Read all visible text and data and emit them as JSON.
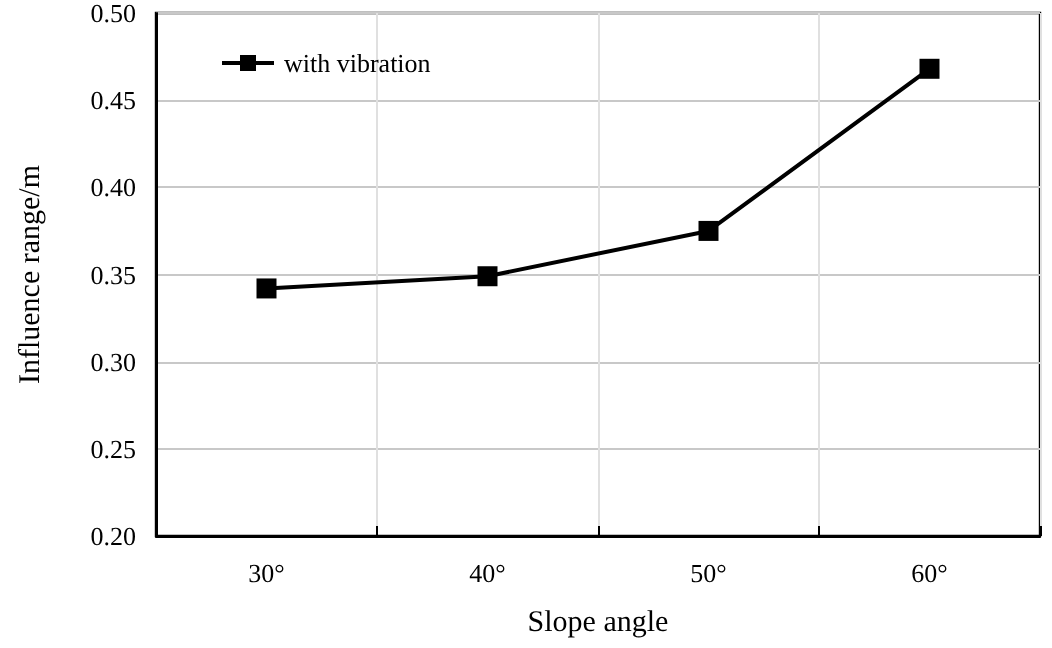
{
  "chart_data": {
    "type": "line",
    "xlabel": "Slope angle",
    "ylabel": "Influence range/m",
    "categories": [
      "30°",
      "40°",
      "50°",
      "60°"
    ],
    "series": [
      {
        "name": "with vibration",
        "color": "#000000",
        "values": [
          0.342,
          0.349,
          0.375,
          0.468
        ]
      }
    ],
    "ylim": [
      0.2,
      0.5
    ],
    "yticks": [
      {
        "value": 0.2,
        "label": "0.20"
      },
      {
        "value": 0.25,
        "label": "0.25"
      },
      {
        "value": 0.3,
        "label": "0.30"
      },
      {
        "value": 0.35,
        "label": "0.35"
      },
      {
        "value": 0.4,
        "label": "0.40"
      },
      {
        "value": 0.45,
        "label": "0.45"
      },
      {
        "value": 0.5,
        "label": "0.50"
      }
    ],
    "grid": true,
    "legend": "top left",
    "marker": "square",
    "line_style": "solid"
  }
}
